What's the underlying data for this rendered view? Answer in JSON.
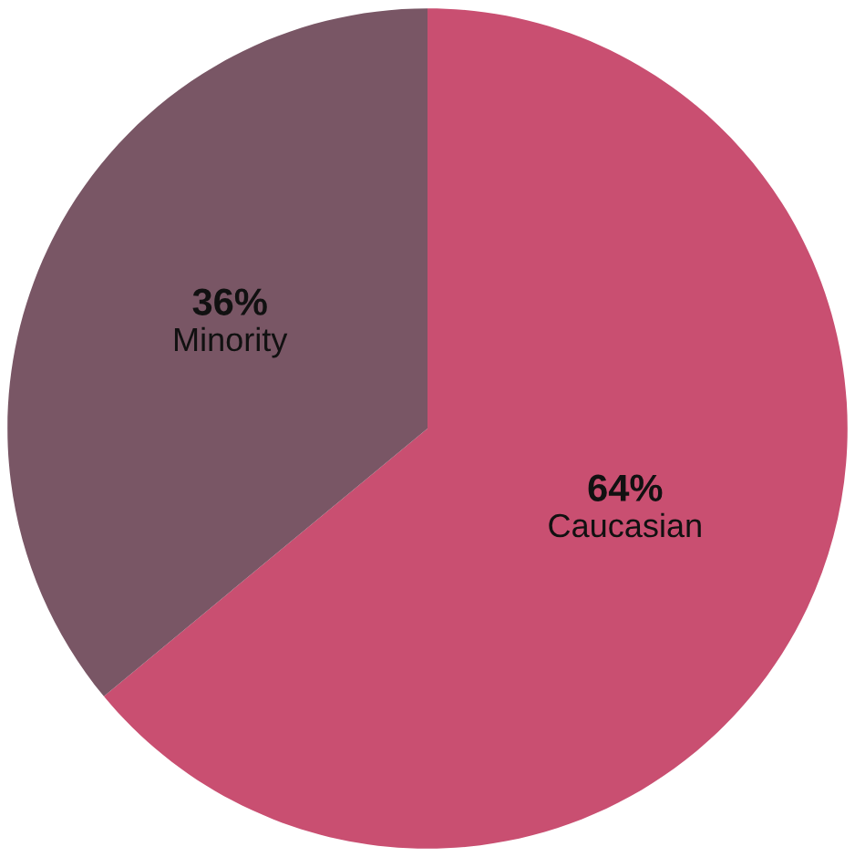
{
  "chart_data": {
    "type": "pie",
    "categories": [
      "Caucasian",
      "Minority"
    ],
    "values": [
      64,
      36
    ],
    "colors": [
      "#c94f71",
      "#795665"
    ],
    "value_labels": [
      "64%",
      "36%"
    ],
    "legend": false
  }
}
